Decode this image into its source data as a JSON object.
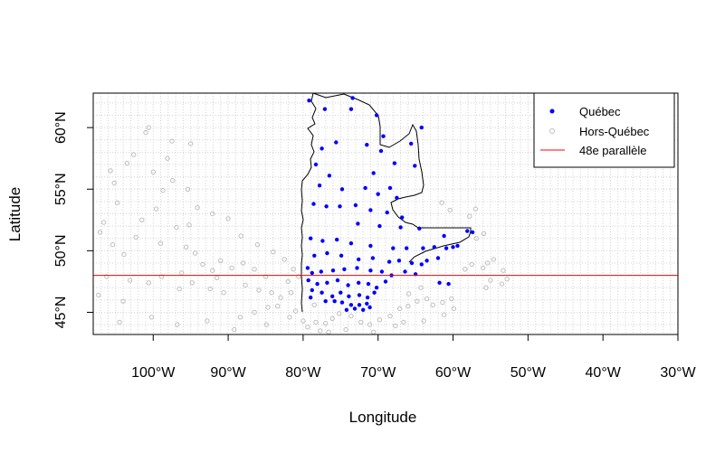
{
  "chart_data": {
    "type": "scatter",
    "title": "",
    "xlabel": "Longitude",
    "ylabel": "Latitude",
    "xlim": [
      -108,
      -30
    ],
    "ylim": [
      43.2,
      62.8
    ],
    "x_ticks": [
      {
        "value": -100,
        "label": "100°W"
      },
      {
        "value": -90,
        "label": "90°W"
      },
      {
        "value": -80,
        "label": "80°W"
      },
      {
        "value": -70,
        "label": "70°W"
      },
      {
        "value": -60,
        "label": "60°W"
      },
      {
        "value": -50,
        "label": "50°W"
      },
      {
        "value": -40,
        "label": "40°W"
      },
      {
        "value": -30,
        "label": "30°W"
      }
    ],
    "y_ticks": [
      {
        "value": 45,
        "label": "45°N"
      },
      {
        "value": 50,
        "label": "50°N"
      },
      {
        "value": 55,
        "label": "55°N"
      },
      {
        "value": 60,
        "label": "60°N"
      }
    ],
    "grid": true,
    "legend_position": "top-right",
    "legend": [
      {
        "label": "Québec",
        "marker": "filled-circle",
        "color": "#0000FF"
      },
      {
        "label": "Hors-Québec",
        "marker": "open-circle",
        "color": "#BEBEBE"
      },
      {
        "label": "48e parallèle",
        "marker": "line",
        "color": "#FF0000"
      }
    ],
    "reference_line": {
      "label": "48e parallèle",
      "y": 48,
      "color": "#FF0000"
    },
    "series": [
      {
        "name": "Québec",
        "color": "#0000FF",
        "marker": "filled-circle",
        "points": [
          [
            -79.2,
            62.2
          ],
          [
            -77.1,
            61.5
          ],
          [
            -73.4,
            62.4
          ],
          [
            -70.2,
            61.0
          ],
          [
            -69.3,
            59.3
          ],
          [
            -65.6,
            58.7
          ],
          [
            -75.6,
            58.8
          ],
          [
            -77.5,
            58.3
          ],
          [
            -78.3,
            57.0
          ],
          [
            -76.5,
            56.1
          ],
          [
            -77.8,
            55.3
          ],
          [
            -74.8,
            55.0
          ],
          [
            -70.6,
            56.3
          ],
          [
            -67.8,
            57.1
          ],
          [
            -65.1,
            56.9
          ],
          [
            -68.4,
            55.1
          ],
          [
            -71.7,
            55.1
          ],
          [
            -70.0,
            54.6
          ],
          [
            -67.5,
            54.3
          ],
          [
            -78.6,
            53.8
          ],
          [
            -76.9,
            53.6
          ],
          [
            -75.1,
            53.6
          ],
          [
            -73.0,
            53.7
          ],
          [
            -71.0,
            53.3
          ],
          [
            -68.8,
            53.1
          ],
          [
            -66.8,
            52.7
          ],
          [
            -72.7,
            52.2
          ],
          [
            -69.8,
            52.0
          ],
          [
            -67.0,
            51.9
          ],
          [
            -64.5,
            51.8
          ],
          [
            -61.2,
            51.2
          ],
          [
            -58.1,
            51.6
          ],
          [
            -57.4,
            51.5
          ],
          [
            -79.0,
            51.0
          ],
          [
            -77.4,
            50.8
          ],
          [
            -75.5,
            50.9
          ],
          [
            -73.6,
            50.6
          ],
          [
            -71.0,
            50.4
          ],
          [
            -68.0,
            50.2
          ],
          [
            -66.2,
            50.2
          ],
          [
            -64.0,
            50.2
          ],
          [
            -62.5,
            50.3
          ],
          [
            -60.0,
            50.3
          ],
          [
            -78.5,
            49.6
          ],
          [
            -76.8,
            49.8
          ],
          [
            -74.9,
            49.6
          ],
          [
            -72.6,
            49.3
          ],
          [
            -70.7,
            49.4
          ],
          [
            -68.5,
            49.1
          ],
          [
            -67.2,
            49.2
          ],
          [
            -65.5,
            49.0
          ],
          [
            -64.2,
            48.9
          ],
          [
            -66.4,
            48.3
          ],
          [
            -65.0,
            48.1
          ],
          [
            -79.4,
            48.6
          ],
          [
            -78.8,
            48.2
          ],
          [
            -77.6,
            48.3
          ],
          [
            -76.0,
            48.4
          ],
          [
            -74.5,
            48.5
          ],
          [
            -72.8,
            48.6
          ],
          [
            -71.0,
            48.4
          ],
          [
            -69.5,
            48.3
          ],
          [
            -68.2,
            48.0
          ],
          [
            -79.3,
            47.6
          ],
          [
            -78.1,
            47.3
          ],
          [
            -76.8,
            47.4
          ],
          [
            -75.4,
            47.6
          ],
          [
            -74.0,
            47.2
          ],
          [
            -72.6,
            47.4
          ],
          [
            -71.3,
            47.3
          ],
          [
            -70.2,
            47.0
          ],
          [
            -69.0,
            47.5
          ],
          [
            -78.8,
            46.8
          ],
          [
            -77.5,
            46.6
          ],
          [
            -76.1,
            46.3
          ],
          [
            -75.0,
            46.6
          ],
          [
            -73.9,
            46.3
          ],
          [
            -72.5,
            46.4
          ],
          [
            -71.4,
            46.2
          ],
          [
            -70.5,
            46.6
          ],
          [
            -74.8,
            45.8
          ],
          [
            -73.6,
            45.6
          ],
          [
            -72.5,
            45.6
          ],
          [
            -71.5,
            45.7
          ],
          [
            -74.2,
            45.2
          ],
          [
            -73.1,
            45.3
          ],
          [
            -72.0,
            45.2
          ],
          [
            -71.1,
            45.4
          ],
          [
            -75.8,
            45.9
          ],
          [
            -77.0,
            45.9
          ],
          [
            -79.0,
            46.2
          ],
          [
            -60.6,
            47.3
          ],
          [
            -61.8,
            47.4
          ],
          [
            -62.0,
            49.4
          ],
          [
            -63.5,
            49.2
          ],
          [
            -60.9,
            50.2
          ],
          [
            -59.4,
            50.4
          ],
          [
            -69.6,
            58.1
          ],
          [
            -71.5,
            58.6
          ],
          [
            -64.2,
            60.0
          ],
          [
            -73.6,
            61.5
          ]
        ]
      },
      {
        "name": "Hors-Québec",
        "color": "#BEBEBE",
        "marker": "open-circle",
        "points": [
          [
            -105.2,
            55.5
          ],
          [
            -104.8,
            53.9
          ],
          [
            -106.6,
            52.3
          ],
          [
            -107.1,
            51.5
          ],
          [
            -105.4,
            50.5
          ],
          [
            -103.9,
            49.7
          ],
          [
            -102.3,
            51.1
          ],
          [
            -101.5,
            52.5
          ],
          [
            -99.6,
            53.4
          ],
          [
            -98.7,
            54.9
          ],
          [
            -97.4,
            55.7
          ],
          [
            -96.9,
            51.9
          ],
          [
            -95.6,
            50.3
          ],
          [
            -94.4,
            49.8
          ],
          [
            -93.4,
            48.9
          ],
          [
            -92.1,
            48.4
          ],
          [
            -91.0,
            49.2
          ],
          [
            -89.5,
            48.6
          ],
          [
            -88.0,
            49.0
          ],
          [
            -86.5,
            48.5
          ],
          [
            -85.0,
            47.9
          ],
          [
            -84.2,
            46.6
          ],
          [
            -83.0,
            46.2
          ],
          [
            -81.6,
            46.6
          ],
          [
            -81.0,
            45.1
          ],
          [
            -80.0,
            44.3
          ],
          [
            -79.4,
            43.8
          ],
          [
            -78.3,
            44.2
          ],
          [
            -77.0,
            44.1
          ],
          [
            -76.1,
            44.5
          ],
          [
            -75.2,
            44.9
          ],
          [
            -73.6,
            44.7
          ],
          [
            -72.3,
            44.2
          ],
          [
            -71.1,
            44.0
          ],
          [
            -69.8,
            44.4
          ],
          [
            -68.4,
            44.7
          ],
          [
            -67.1,
            45.3
          ],
          [
            -66.0,
            45.5
          ],
          [
            -64.8,
            45.9
          ],
          [
            -63.5,
            46.1
          ],
          [
            -62.7,
            45.6
          ],
          [
            -61.4,
            45.8
          ],
          [
            -60.2,
            46.1
          ],
          [
            -65.9,
            46.5
          ],
          [
            -64.3,
            47.0
          ],
          [
            -56.0,
            48.6
          ],
          [
            -55.0,
            47.6
          ],
          [
            -53.5,
            47.3
          ],
          [
            -52.8,
            47.7
          ],
          [
            -53.3,
            48.4
          ],
          [
            -54.6,
            49.3
          ],
          [
            -55.4,
            49.0
          ],
          [
            -57.5,
            48.9
          ],
          [
            -58.4,
            48.5
          ],
          [
            -56.9,
            51.0
          ],
          [
            -55.9,
            51.4
          ],
          [
            -57.8,
            52.8
          ],
          [
            -60.4,
            53.3
          ],
          [
            -61.5,
            53.9
          ],
          [
            -57.0,
            53.4
          ],
          [
            -95.0,
            58.7
          ],
          [
            -97.5,
            58.9
          ],
          [
            -101.0,
            59.6
          ],
          [
            -98.1,
            57.5
          ],
          [
            -103.5,
            57.1
          ],
          [
            -100.0,
            56.4
          ],
          [
            -95.4,
            55.0
          ],
          [
            -92.1,
            53.0
          ],
          [
            -90.0,
            52.6
          ],
          [
            -88.3,
            51.2
          ],
          [
            -86.1,
            50.5
          ],
          [
            -84.0,
            49.9
          ],
          [
            -82.5,
            49.3
          ],
          [
            -81.3,
            48.5
          ],
          [
            -80.6,
            47.9
          ],
          [
            -82.0,
            47.5
          ],
          [
            -84.7,
            45.4
          ],
          [
            -86.5,
            45.0
          ],
          [
            -88.4,
            44.6
          ],
          [
            -90.6,
            46.6
          ],
          [
            -92.4,
            46.9
          ],
          [
            -94.8,
            47.4
          ],
          [
            -96.5,
            46.9
          ],
          [
            -98.9,
            47.9
          ],
          [
            -100.6,
            47.4
          ],
          [
            -103.1,
            47.6
          ],
          [
            -106.2,
            47.9
          ],
          [
            -104.0,
            45.9
          ],
          [
            -100.2,
            44.6
          ],
          [
            -96.8,
            44.0
          ],
          [
            -92.8,
            44.3
          ],
          [
            -89.2,
            43.6
          ],
          [
            -84.9,
            44.0
          ],
          [
            -81.8,
            44.6
          ],
          [
            -104.5,
            44.2
          ],
          [
            -107.3,
            46.4
          ],
          [
            -100.6,
            60.0
          ],
          [
            -102.6,
            57.8
          ],
          [
            -105.7,
            56.5
          ],
          [
            -95.2,
            52.1
          ],
          [
            -94.1,
            53.5
          ],
          [
            -99.0,
            50.6
          ],
          [
            -96.2,
            48.2
          ],
          [
            -91.5,
            47.8
          ],
          [
            -87.7,
            47.2
          ],
          [
            -85.9,
            46.8
          ],
          [
            -83.4,
            45.5
          ],
          [
            -78.5,
            45.6
          ],
          [
            -77.7,
            43.5
          ],
          [
            -76.6,
            43.4
          ],
          [
            -74.3,
            43.6
          ],
          [
            -70.6,
            43.4
          ],
          [
            -67.7,
            43.9
          ],
          [
            -66.6,
            44.2
          ],
          [
            -63.9,
            44.3
          ],
          [
            -61.2,
            44.8
          ],
          [
            -59.9,
            45.3
          ],
          [
            -55.6,
            47.0
          ]
        ]
      }
    ]
  }
}
